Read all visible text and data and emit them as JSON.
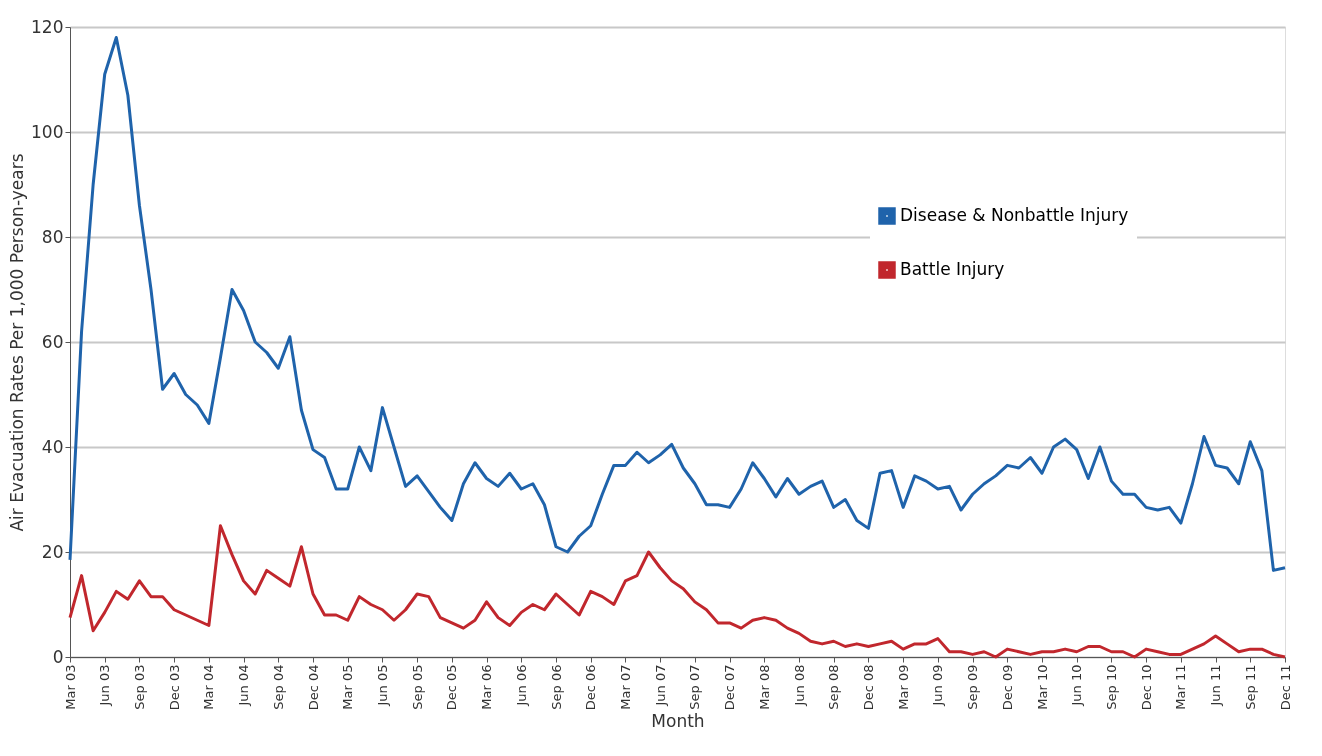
{
  "chart_data": {
    "type": "line",
    "xlabel": "Month",
    "ylabel": "Air Evacuation Rates Per 1,000 Person-years",
    "categories": [
      "Mar 03",
      null,
      null,
      "Jun 03",
      null,
      null,
      "Sep 03",
      null,
      null,
      "Dec 03",
      null,
      null,
      "Mar 04",
      null,
      null,
      "Jun 04",
      null,
      null,
      "Sep 04",
      null,
      null,
      "Dec 04",
      null,
      null,
      "Mar 05",
      null,
      null,
      "Jun 05",
      null,
      null,
      "Sep 05",
      null,
      null,
      "Dec 05",
      null,
      null,
      "Mar 06",
      null,
      null,
      "Jun 06",
      null,
      null,
      "Sep 06",
      null,
      null,
      "Dec 06",
      null,
      null,
      "Mar 07",
      null,
      null,
      "Jun 07",
      null,
      null,
      "Sep 07",
      null,
      null,
      "Dec 07",
      null,
      null,
      "Mar 08",
      null,
      null,
      "Jun 08",
      null,
      null,
      "Sep 08",
      null,
      null,
      "Dec 08",
      null,
      null,
      "Mar 09",
      null,
      null,
      "Jun 09",
      null,
      null,
      "Sep 09",
      null,
      null,
      "Dec 09",
      null,
      null,
      "Mar 10",
      null,
      null,
      "Jun 10",
      null,
      null,
      "Sep 10",
      null,
      null,
      "Dec 10",
      null,
      null,
      "Mar 11",
      null,
      null,
      "Jun 11",
      null,
      null,
      "Sep 11",
      null,
      null,
      "Dec 11"
    ],
    "series": [
      {
        "name": "Disease & Nonbattle Injury",
        "color": "#1f63ab",
        "values": [
          18.5,
          62,
          90,
          111,
          118,
          107,
          86,
          70,
          51,
          54,
          50,
          48,
          44.5,
          57,
          70,
          66,
          60,
          58,
          55,
          61,
          47,
          39.5,
          38,
          32,
          32,
          40,
          35.5,
          47.5,
          40,
          32.5,
          34.5,
          31.5,
          28.5,
          26,
          33,
          37,
          34,
          32.5,
          35,
          32,
          33,
          29,
          21,
          20,
          23,
          25,
          31,
          36.5,
          36.5,
          39,
          37,
          38.5,
          40.5,
          36,
          33,
          29,
          29,
          28.5,
          32,
          37,
          34,
          30.5,
          34,
          31,
          32.5,
          33.5,
          28.5,
          30,
          26,
          24.5,
          35,
          35.5,
          28.5,
          34.5,
          33.5,
          32,
          32.5,
          28,
          31,
          33,
          34.5,
          36.5,
          36,
          38,
          35,
          40,
          41.5,
          39.5,
          34,
          40,
          33.5,
          31,
          31,
          28.5,
          28,
          28.5,
          25.5,
          33,
          42,
          36.5,
          36,
          33,
          41,
          35.5,
          16.5,
          17
        ]
      },
      {
        "name": "Battle Injury",
        "color": "#c1272d",
        "values": [
          7.5,
          15.5,
          5,
          8.5,
          12.5,
          11,
          14.5,
          11.5,
          11.5,
          9,
          8,
          7,
          6,
          25,
          19.5,
          14.5,
          12,
          16.5,
          15,
          13.5,
          21,
          12,
          8,
          8,
          7,
          11.5,
          10,
          9,
          7,
          9,
          12,
          11.5,
          7.5,
          6.5,
          5.5,
          7,
          10.5,
          7.5,
          6,
          8.5,
          10,
          9,
          12,
          10,
          8,
          12.5,
          11.5,
          10,
          14.5,
          15.5,
          20,
          17,
          14.5,
          13,
          10.5,
          9,
          6.5,
          6.5,
          5.5,
          7,
          7.5,
          7,
          5.5,
          4.5,
          3,
          2.5,
          3,
          2,
          2.5,
          2,
          2.5,
          3,
          1.5,
          2.5,
          2.5,
          3.5,
          1,
          1,
          0.5,
          1,
          0,
          1.5,
          1,
          0.5,
          1,
          1,
          1.5,
          1,
          2,
          2,
          1,
          1,
          0,
          1.5,
          1,
          0.5,
          0.5,
          1.5,
          2.5,
          4,
          2.5,
          1,
          1.5,
          1.5,
          0.5,
          0
        ]
      }
    ],
    "ylim": [
      0,
      120
    ],
    "yticks": [
      0,
      20,
      40,
      60,
      80,
      100,
      120
    ],
    "grid": "y",
    "legend": "right"
  }
}
